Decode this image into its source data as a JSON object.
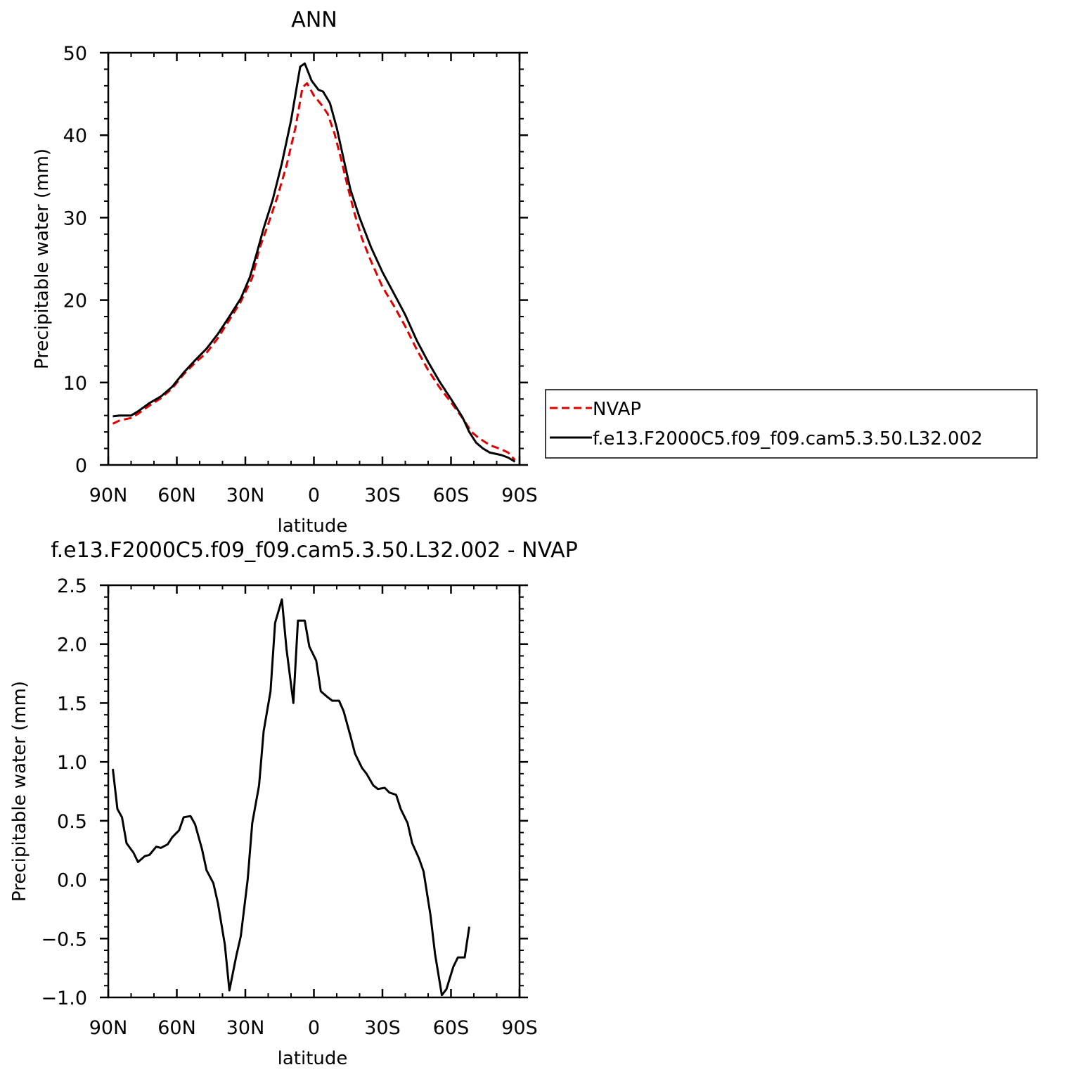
{
  "chart_data": [
    {
      "type": "line",
      "title": "ANN",
      "xlabel": "latitude",
      "ylabel": "Precipitable water (mm)",
      "xlim": [
        -90,
        90
      ],
      "ylim": [
        0,
        50
      ],
      "x_ticks": [
        {
          "value": -90,
          "label": "90N"
        },
        {
          "value": -60,
          "label": "60N"
        },
        {
          "value": -30,
          "label": "30N"
        },
        {
          "value": 0,
          "label": "0"
        },
        {
          "value": 30,
          "label": "30S"
        },
        {
          "value": 60,
          "label": "60S"
        },
        {
          "value": 90,
          "label": "90S"
        }
      ],
      "y_ticks": [
        {
          "value": 0,
          "label": "0"
        },
        {
          "value": 10,
          "label": "10"
        },
        {
          "value": 20,
          "label": "20"
        },
        {
          "value": 30,
          "label": "30"
        },
        {
          "value": 40,
          "label": "40"
        },
        {
          "value": 50,
          "label": "50"
        }
      ],
      "legend": "right",
      "series": [
        {
          "name": "NVAP",
          "color": "#e00000",
          "style": "dashed",
          "points": [
            [
              -88,
              5.0
            ],
            [
              -85,
              5.4
            ],
            [
              -80,
              5.7
            ],
            [
              -77,
              6.2
            ],
            [
              -72,
              7.2
            ],
            [
              -67,
              8.1
            ],
            [
              -62,
              9.3
            ],
            [
              -57,
              11.0
            ],
            [
              -52,
              12.4
            ],
            [
              -47,
              13.6
            ],
            [
              -42,
              15.4
            ],
            [
              -37,
              17.6
            ],
            [
              -32,
              19.8
            ],
            [
              -27,
              22.7
            ],
            [
              -24,
              26.1
            ],
            [
              -20,
              29.2
            ],
            [
              -16,
              32.5
            ],
            [
              -12,
              36.3
            ],
            [
              -8,
              41.0
            ],
            [
              -5,
              45.8
            ],
            [
              -3,
              46.3
            ],
            [
              0,
              44.8
            ],
            [
              3,
              43.8
            ],
            [
              6,
              42.6
            ],
            [
              9,
              40.2
            ],
            [
              12,
              37.0
            ],
            [
              15,
              33.5
            ],
            [
              18,
              30.3
            ],
            [
              21,
              27.5
            ],
            [
              25,
              24.7
            ],
            [
              30,
              21.6
            ],
            [
              35,
              19.3
            ],
            [
              40,
              16.8
            ],
            [
              45,
              14.0
            ],
            [
              50,
              11.5
            ],
            [
              55,
              9.4
            ],
            [
              60,
              7.6
            ],
            [
              65,
              5.7
            ],
            [
              69,
              4.0
            ],
            [
              72,
              3.3
            ],
            [
              77,
              2.4
            ],
            [
              82,
              1.9
            ],
            [
              85,
              1.5
            ],
            [
              88,
              0.6
            ]
          ]
        },
        {
          "name": "f.e13.F2000C5.f09_f09.cam5.3.50.L32.002",
          "color": "#000000",
          "style": "solid",
          "points": [
            [
              -88,
              5.9
            ],
            [
              -85,
              6.0
            ],
            [
              -80,
              6.0
            ],
            [
              -77,
              6.5
            ],
            [
              -72,
              7.5
            ],
            [
              -67,
              8.3
            ],
            [
              -62,
              9.5
            ],
            [
              -57,
              11.2
            ],
            [
              -52,
              12.7
            ],
            [
              -47,
              14.1
            ],
            [
              -42,
              15.9
            ],
            [
              -37,
              18.0
            ],
            [
              -32,
              20.2
            ],
            [
              -28,
              22.8
            ],
            [
              -25,
              25.7
            ],
            [
              -22,
              28.7
            ],
            [
              -18,
              32.2
            ],
            [
              -14,
              36.6
            ],
            [
              -10,
              41.8
            ],
            [
              -6,
              48.3
            ],
            [
              -4,
              48.7
            ],
            [
              -1,
              46.6
            ],
            [
              2,
              45.5
            ],
            [
              4,
              45.3
            ],
            [
              7,
              43.9
            ],
            [
              10,
              40.9
            ],
            [
              13,
              37.1
            ],
            [
              16,
              33.4
            ],
            [
              20,
              30.0
            ],
            [
              25,
              26.4
            ],
            [
              30,
              23.4
            ],
            [
              35,
              20.8
            ],
            [
              40,
              18.2
            ],
            [
              45,
              15.1
            ],
            [
              50,
              12.5
            ],
            [
              55,
              10.1
            ],
            [
              60,
              8.0
            ],
            [
              65,
              5.8
            ],
            [
              68,
              4.0
            ],
            [
              71,
              2.7
            ],
            [
              74,
              2.0
            ],
            [
              77,
              1.5
            ],
            [
              82,
              1.2
            ],
            [
              85,
              0.9
            ],
            [
              88,
              0.4
            ]
          ]
        }
      ]
    },
    {
      "type": "line",
      "title": "f.e13.F2000C5.f09_f09.cam5.3.50.L32.002 - NVAP",
      "xlabel": "latitude",
      "ylabel": "Precipitable water (mm)",
      "xlim": [
        -90,
        90
      ],
      "ylim": [
        -1.0,
        2.5
      ],
      "x_ticks": [
        {
          "value": -90,
          "label": "90N"
        },
        {
          "value": -60,
          "label": "60N"
        },
        {
          "value": -30,
          "label": "30N"
        },
        {
          "value": 0,
          "label": "0"
        },
        {
          "value": 30,
          "label": "30S"
        },
        {
          "value": 60,
          "label": "60S"
        },
        {
          "value": 90,
          "label": "90S"
        }
      ],
      "y_ticks": [
        {
          "value": -1.0,
          "label": "−1.0"
        },
        {
          "value": -0.5,
          "label": "−0.5"
        },
        {
          "value": 0.0,
          "label": "0.0"
        },
        {
          "value": 0.5,
          "label": "0.5"
        },
        {
          "value": 1.0,
          "label": "1.0"
        },
        {
          "value": 1.5,
          "label": "1.5"
        },
        {
          "value": 2.0,
          "label": "2.0"
        },
        {
          "value": 2.5,
          "label": "2.5"
        }
      ],
      "series": [
        {
          "color": "#000000",
          "style": "solid",
          "points": [
            [
              -88,
              0.94
            ],
            [
              -86,
              0.6
            ],
            [
              -84,
              0.53
            ],
            [
              -82,
              0.31
            ],
            [
              -79,
              0.23
            ],
            [
              -77,
              0.15
            ],
            [
              -74,
              0.2
            ],
            [
              -72,
              0.21
            ],
            [
              -69,
              0.28
            ],
            [
              -67,
              0.27
            ],
            [
              -64,
              0.3
            ],
            [
              -62,
              0.36
            ],
            [
              -59,
              0.42
            ],
            [
              -57,
              0.53
            ],
            [
              -54,
              0.54
            ],
            [
              -52,
              0.47
            ],
            [
              -49,
              0.26
            ],
            [
              -47,
              0.08
            ],
            [
              -44,
              -0.03
            ],
            [
              -42,
              -0.2
            ],
            [
              -39,
              -0.55
            ],
            [
              -37,
              -0.94
            ],
            [
              -34,
              -0.65
            ],
            [
              -32,
              -0.48
            ],
            [
              -29,
              0.0
            ],
            [
              -27,
              0.48
            ],
            [
              -24,
              0.8
            ],
            [
              -22,
              1.26
            ],
            [
              -19,
              1.6
            ],
            [
              -17,
              2.18
            ],
            [
              -14,
              2.38
            ],
            [
              -12,
              1.96
            ],
            [
              -9,
              1.5
            ],
            [
              -7,
              2.2
            ],
            [
              -4,
              2.2
            ],
            [
              -2,
              1.98
            ],
            [
              1,
              1.86
            ],
            [
              3,
              1.6
            ],
            [
              6,
              1.55
            ],
            [
              8,
              1.52
            ],
            [
              11,
              1.52
            ],
            [
              13,
              1.43
            ],
            [
              16,
              1.22
            ],
            [
              18,
              1.07
            ],
            [
              21,
              0.95
            ],
            [
              23,
              0.9
            ],
            [
              26,
              0.8
            ],
            [
              28,
              0.77
            ],
            [
              31,
              0.78
            ],
            [
              33,
              0.74
            ],
            [
              36,
              0.72
            ],
            [
              38,
              0.6
            ],
            [
              41,
              0.48
            ],
            [
              43,
              0.31
            ],
            [
              46,
              0.18
            ],
            [
              48,
              0.07
            ],
            [
              51,
              -0.3
            ],
            [
              53,
              -0.63
            ],
            [
              56,
              -0.98
            ],
            [
              58,
              -0.93
            ],
            [
              61,
              -0.74
            ],
            [
              63,
              -0.66
            ],
            [
              66,
              -0.66
            ],
            [
              68,
              -0.4
            ]
          ]
        }
      ]
    }
  ]
}
